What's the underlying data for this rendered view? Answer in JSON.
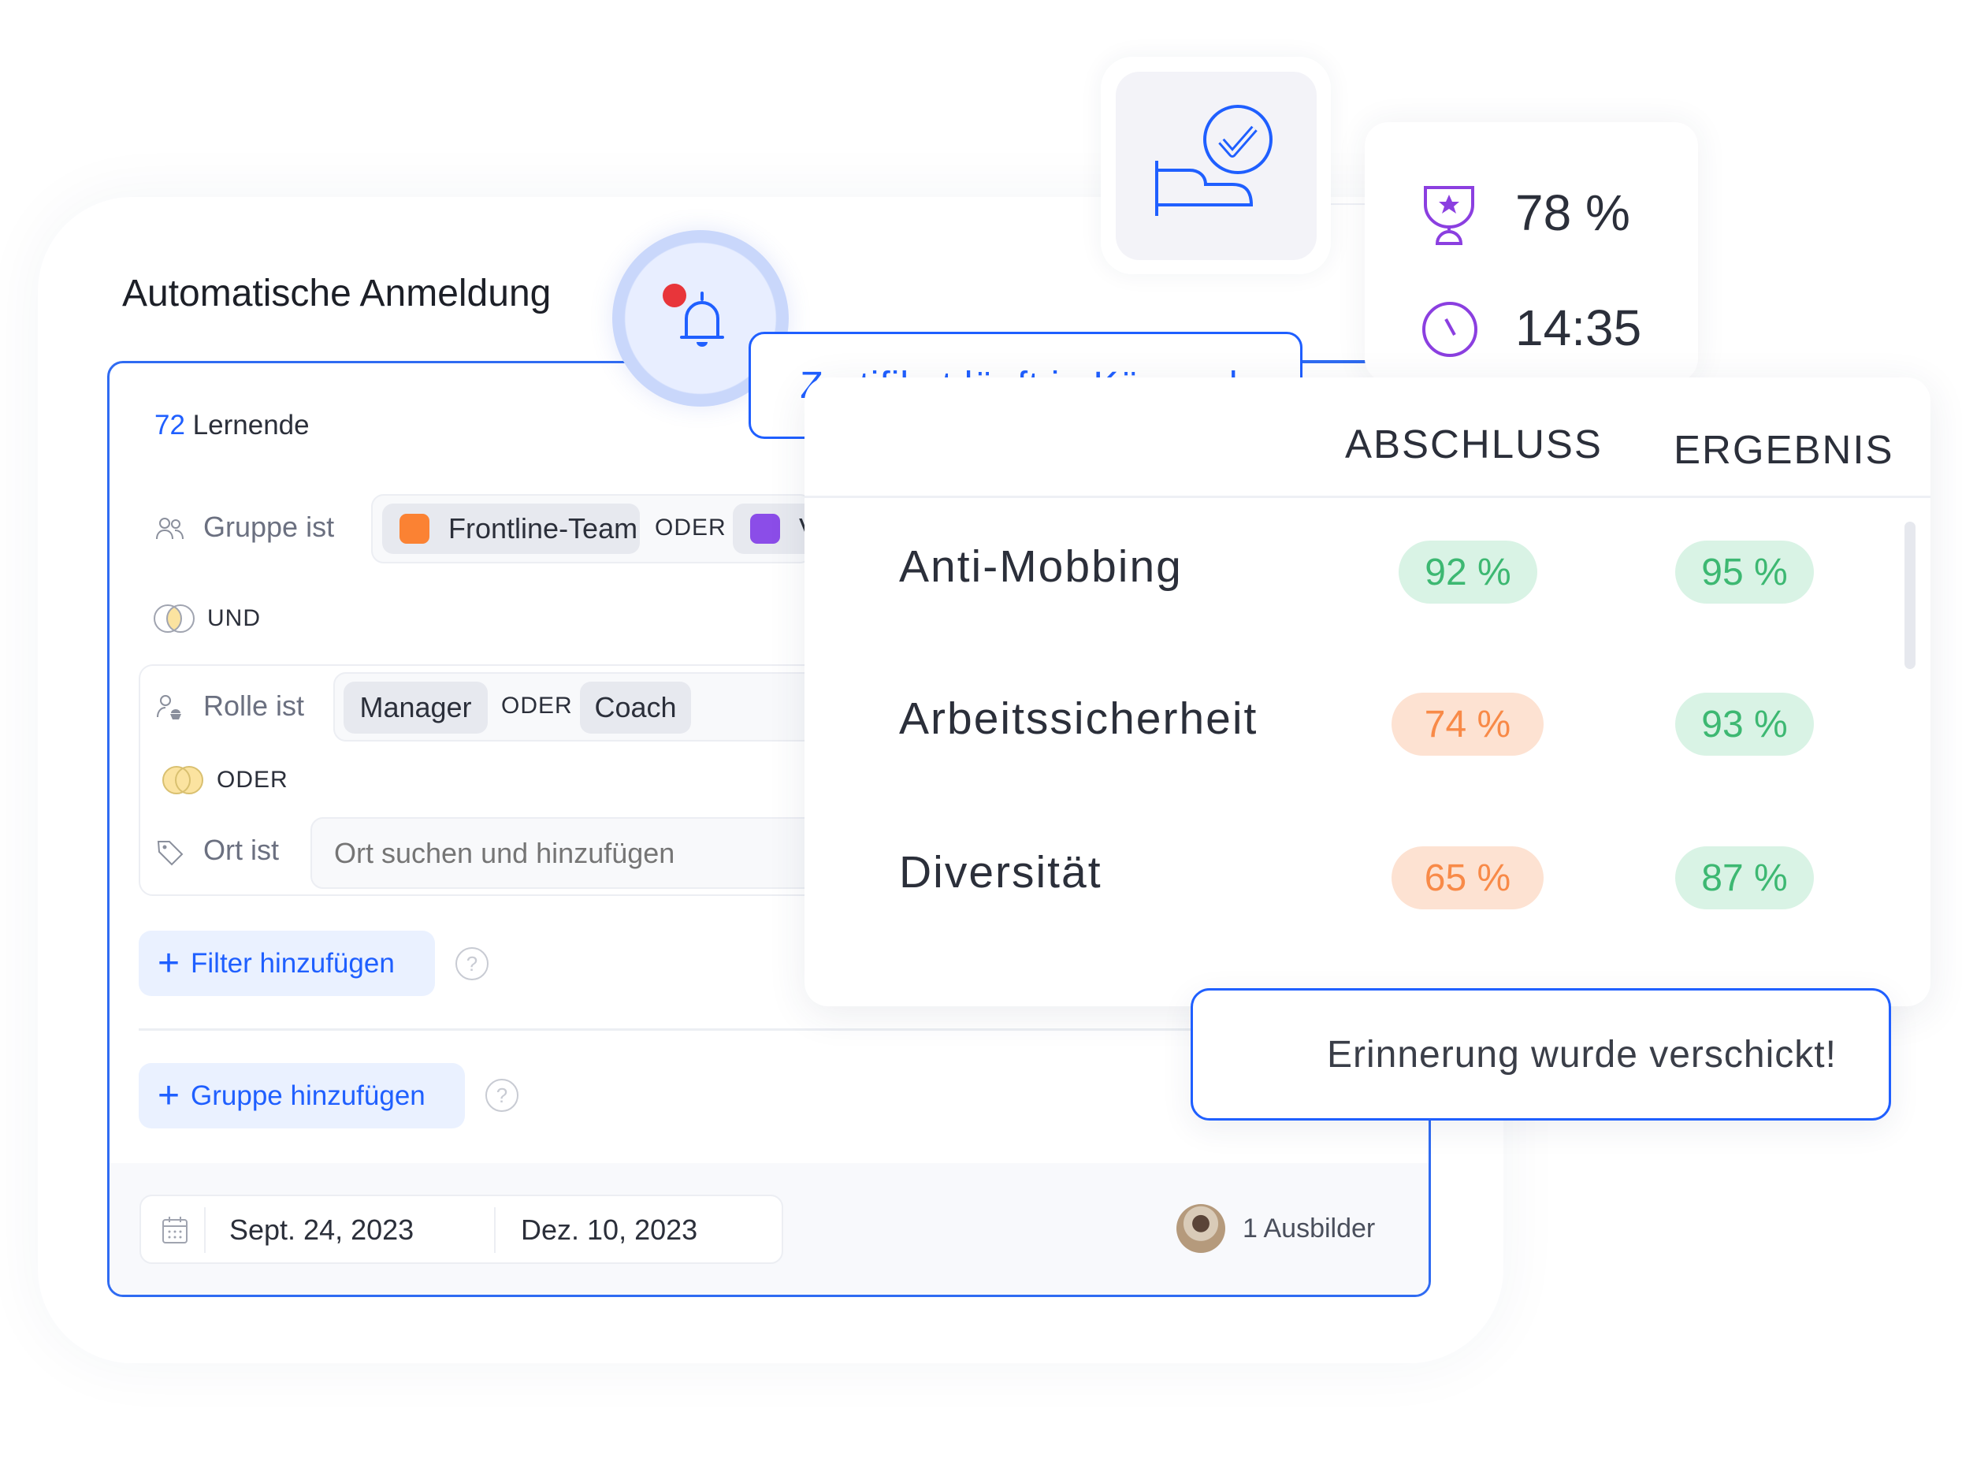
{
  "enrollment": {
    "title": "Automatische Anmeldung",
    "learner_count": "72",
    "learner_label": "Lernende",
    "group_filter": {
      "label": "Gruppe ist",
      "chips": [
        {
          "label": "Frontline-Team",
          "color": "#fb8233"
        },
        {
          "label": "V",
          "color": "#8b4de8"
        }
      ],
      "operator": "ODER"
    },
    "and_label": "UND",
    "role_filter": {
      "label": "Rolle ist",
      "chips": [
        "Manager",
        "Coach"
      ],
      "operator": "ODER"
    },
    "or_label": "ODER",
    "location_filter": {
      "label": "Ort ist",
      "placeholder": "Ort suchen und hinzufügen"
    },
    "add_filter_label": "Filter hinzufügen",
    "add_group_label": "Gruppe hinzufügen",
    "help_glyph": "?",
    "start_date": "Sept. 24, 2023",
    "end_date": "Dez. 10, 2023",
    "trainers": "1 Ausbilder"
  },
  "notification": {
    "has_unread": true,
    "tooltip": "Zertifikat läuft in Kürze ab"
  },
  "stats": {
    "score": "78 %",
    "time": "14:35"
  },
  "results_table": {
    "headers": [
      "ABSCHLUSS",
      "ERGEBNIS"
    ],
    "rows": [
      {
        "name": "Anti-Mobbing",
        "completion": "92 %",
        "completion_status": "good",
        "result": "95 %",
        "result_status": "good"
      },
      {
        "name": "Arbeitssicherheit",
        "completion": "74 %",
        "completion_status": "warn",
        "result": "93 %",
        "result_status": "good"
      },
      {
        "name": "Diversität",
        "completion": "65 %",
        "completion_status": "warn",
        "result": "87 %",
        "result_status": "good"
      }
    ]
  },
  "toast": {
    "message": "Erinnerung wurde verschickt!"
  },
  "colors": {
    "accent": "#1f5fff",
    "good_bg": "#d9f3e5",
    "good_text": "#3db872",
    "warn_bg": "#fde2d2",
    "warn_text": "#f88a48",
    "stat_icon": "#8b3fe0"
  }
}
